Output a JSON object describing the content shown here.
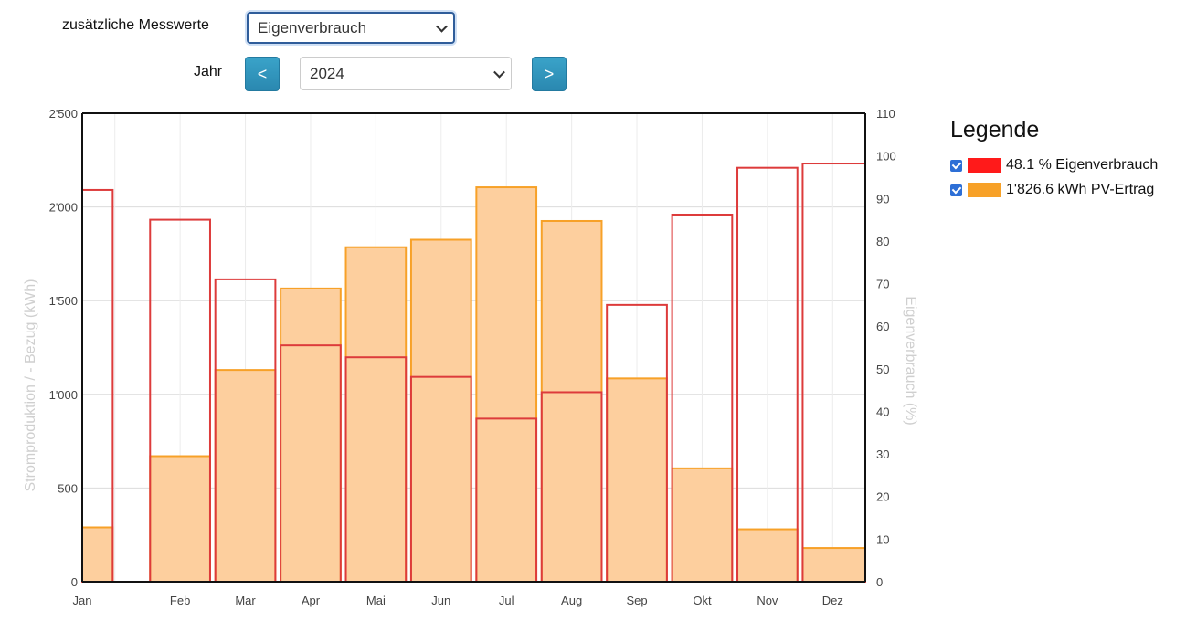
{
  "controls": {
    "measure_label": "zusätzliche Messwerte",
    "measure_value": "Eigenverbrauch",
    "year_label": "Jahr",
    "prev_label": "<",
    "year_value": "2024",
    "next_label": ">"
  },
  "legend": {
    "title": "Legende",
    "items": [
      {
        "label": "48.1 % Eigenverbrauch",
        "color": "#ff1a1a"
      },
      {
        "label": "1'826.6 kWh PV-Ertrag",
        "color": "#f7a128"
      }
    ]
  },
  "chart_data": {
    "type": "bar",
    "categories": [
      "Jan",
      "Feb",
      "Mar",
      "Apr",
      "Mai",
      "Jun",
      "Jul",
      "Aug",
      "Sep",
      "Okt",
      "Nov",
      "Dez"
    ],
    "ylabel": "Stromproduktion / - Bezug (kWh)",
    "y2label": "Eigenverbrauch (%)",
    "ylim": [
      0,
      2500
    ],
    "y2lim": [
      0,
      110
    ],
    "yticks": [
      "0",
      "500",
      "1'000",
      "1'500",
      "2'000",
      "2'500"
    ],
    "y2ticks": [
      "0",
      "10",
      "20",
      "30",
      "40",
      "50",
      "60",
      "70",
      "80",
      "90",
      "100",
      "110"
    ],
    "series": [
      {
        "name": "PV-Ertrag",
        "axis": "left",
        "color": "#f7a128",
        "fill": "#fdcf9e",
        "values": [
          290,
          670,
          1130,
          1565,
          1785,
          1825,
          2105,
          1925,
          1085,
          605,
          280,
          180
        ]
      },
      {
        "name": "Eigenverbrauch",
        "axis": "right",
        "color": "#dd3b3b",
        "values": [
          92,
          85,
          71,
          55.5,
          52.7,
          48.1,
          38.3,
          44.5,
          65,
          86.2,
          97.2,
          98.2
        ]
      }
    ],
    "grid": true
  }
}
